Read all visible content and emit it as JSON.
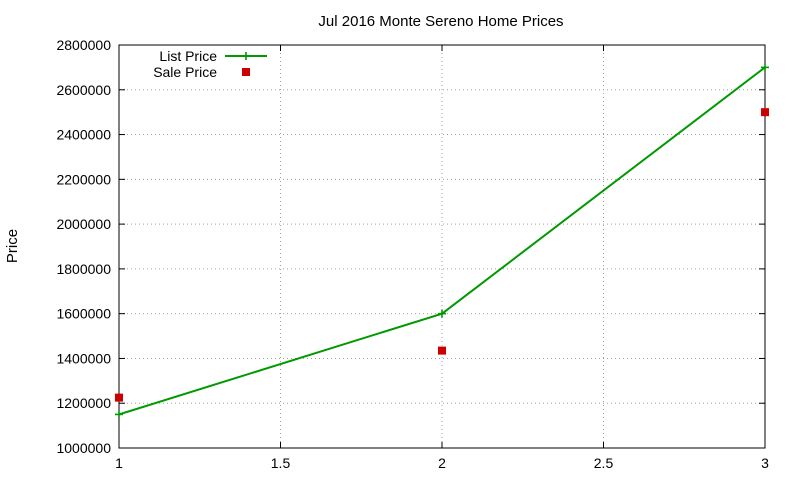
{
  "chart_data": {
    "type": "line",
    "title": "Jul 2016 Monte Sereno Home Prices",
    "xlabel": "",
    "ylabel": "Price",
    "xlim": [
      1,
      3
    ],
    "ylim": [
      1000000,
      2800000
    ],
    "xticks": [
      "1",
      "1.5",
      "2",
      "2.5",
      "3"
    ],
    "xtick_values": [
      1,
      1.5,
      2,
      2.5,
      3
    ],
    "yticks": [
      "1000000",
      "1200000",
      "1400000",
      "1600000",
      "1800000",
      "2000000",
      "2200000",
      "2400000",
      "2600000",
      "2800000"
    ],
    "ytick_values": [
      1000000,
      1200000,
      1400000,
      1600000,
      1800000,
      2000000,
      2200000,
      2400000,
      2600000,
      2800000
    ],
    "grid": true,
    "legend_position": "top-left",
    "series": [
      {
        "name": "List Price",
        "style": "line-plus",
        "color": "#009900",
        "x": [
          1,
          2,
          3
        ],
        "y": [
          1150000,
          1600000,
          2700000
        ]
      },
      {
        "name": "Sale Price",
        "style": "square-markers",
        "color": "#cc0000",
        "x": [
          1,
          2,
          3
        ],
        "y": [
          1225000,
          1435000,
          2500000
        ]
      }
    ]
  }
}
